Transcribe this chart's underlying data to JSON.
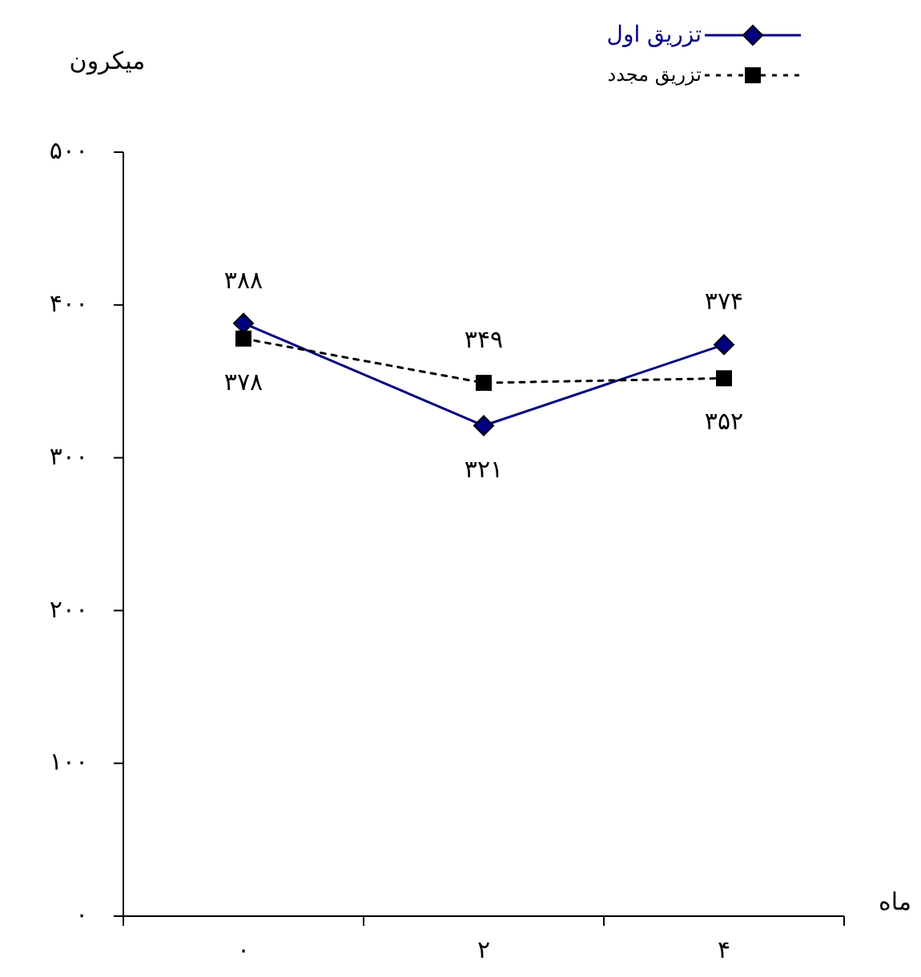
{
  "chart_data": {
    "type": "line",
    "xlabel": "ماه",
    "ylabel": "میکرون",
    "categories": [
      "۰",
      "۲",
      "۴"
    ],
    "ylim": [
      0,
      500
    ],
    "yticks": [
      {
        "value": 0,
        "label": "۰"
      },
      {
        "value": 100,
        "label": "۱۰۰"
      },
      {
        "value": 200,
        "label": "۲۰۰"
      },
      {
        "value": 300,
        "label": "۳۰۰"
      },
      {
        "value": 400,
        "label": "۴۰۰"
      },
      {
        "value": 500,
        "label": "۵۰۰"
      }
    ],
    "series": [
      {
        "name": "تزریق اول",
        "color": "#000080",
        "values": [
          388,
          321,
          374
        ],
        "value_labels": [
          "۳۸۸",
          "۳۲۱",
          "۳۷۴"
        ],
        "marker": "diamond",
        "line_style": "solid"
      },
      {
        "name": "تزریق مجدد",
        "color": "#000000",
        "values": [
          378,
          349,
          352
        ],
        "value_labels": [
          "۳۷۸",
          "۳۴۹",
          "۳۵۲"
        ],
        "marker": "square",
        "line_style": "dotted"
      }
    ],
    "legend": "top right",
    "grid": false
  }
}
